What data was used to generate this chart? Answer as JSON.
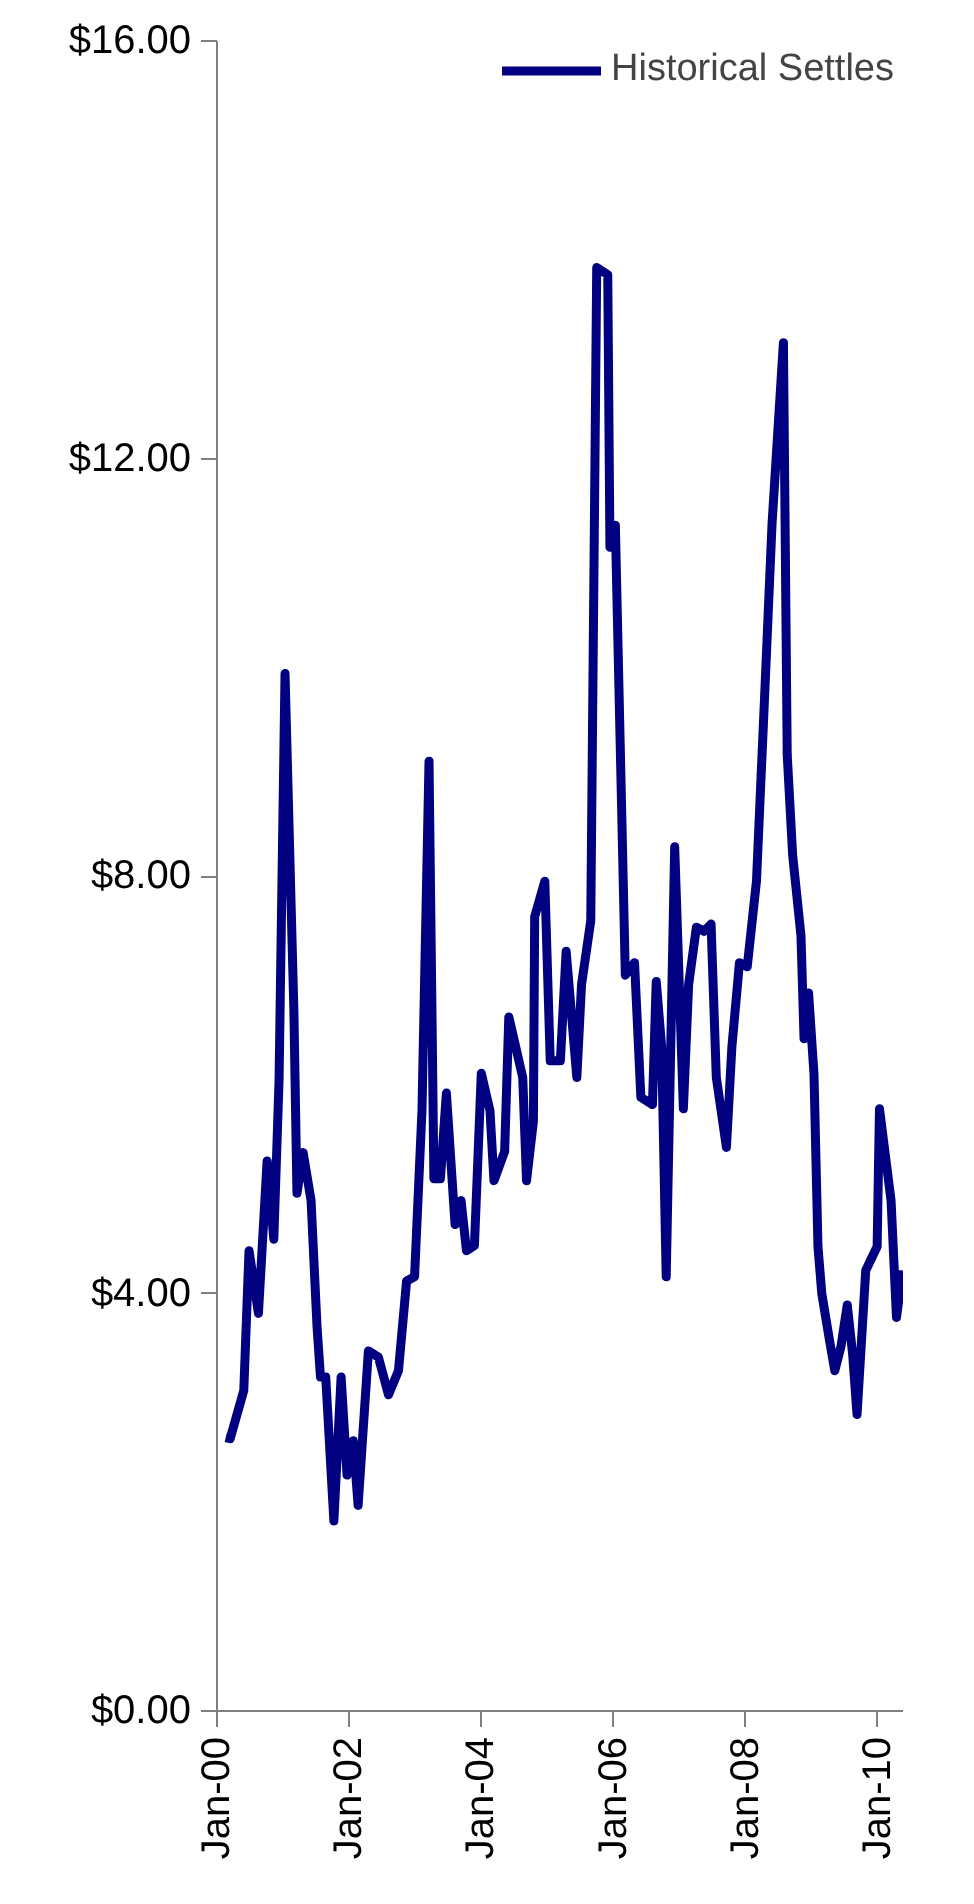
{
  "chart_data": {
    "type": "line",
    "x": [
      "2000-02-18",
      "2000-03-14",
      "2000-05-28",
      "2000-06-26",
      "2000-08-17",
      "2000-10-04",
      "2000-11-10",
      "2000-12-09",
      "2001-01-11",
      "2001-03-01",
      "2001-03-18",
      "2001-04-21",
      "2001-06-04",
      "2001-07-07",
      "2001-07-26",
      "2001-08-24",
      "2001-10-08",
      "2001-11-17",
      "2001-12-20",
      "2002-01-23",
      "2002-02-19",
      "2002-04-17",
      "2002-06-11",
      "2002-08-06",
      "2002-09-30",
      "2002-11-14",
      "2002-12-28",
      "2003-02-07",
      "2003-03-18",
      "2003-04-14",
      "2003-05-20",
      "2003-06-22",
      "2003-08-09",
      "2003-09-11",
      "2003-10-11",
      "2003-11-24",
      "2004-01-01",
      "2004-02-18",
      "2004-03-11",
      "2004-05-09",
      "2004-06-01",
      "2004-08-17",
      "2004-09-07",
      "2004-10-15",
      "2004-10-22",
      "2004-12-17",
      "2005-01-16",
      "2005-03-13",
      "2005-04-14",
      "2005-06-12",
      "2005-07-08",
      "2005-08-28",
      "2005-09-30",
      "2005-11-30",
      "2005-12-12",
      "2006-01-11",
      "2006-03-07",
      "2006-04-27",
      "2006-06-01",
      "2006-08-04",
      "2006-08-25",
      "2006-09-24",
      "2006-10-19",
      "2006-12-05",
      "2007-01-22",
      "2007-02-20",
      "2007-04-04",
      "2007-05-16",
      "2007-06-24",
      "2007-07-23",
      "2007-09-17",
      "2007-10-17",
      "2007-11-28",
      "2008-01-10",
      "2008-03-01",
      "2008-04-12",
      "2008-05-26",
      "2008-07-28",
      "2008-08-18",
      "2008-09-17",
      "2008-11-02",
      "2008-11-19",
      "2008-12-14",
      "2009-01-13",
      "2009-02-04",
      "2009-02-25",
      "2009-04-08",
      "2009-05-08",
      "2009-06-11",
      "2009-07-16",
      "2009-08-15",
      "2009-09-08",
      "2009-10-26",
      "2009-12-28",
      "2010-01-10",
      "2010-03-15",
      "2010-04-14",
      "2010-05-18"
    ],
    "series": [
      {
        "name": "Historical Settles",
        "color": "#000080",
        "values": [
          2.62,
          2.61,
          3.07,
          4.41,
          3.81,
          5.27,
          4.52,
          6.04,
          9.94,
          6.71,
          4.96,
          5.35,
          4.89,
          3.68,
          3.2,
          3.2,
          1.82,
          3.2,
          2.26,
          2.59,
          1.97,
          3.45,
          3.39,
          3.03,
          3.26,
          4.12,
          4.16,
          5.75,
          9.1,
          5.1,
          5.1,
          5.92,
          4.66,
          4.89,
          4.41,
          4.46,
          6.11,
          5.75,
          5.08,
          5.36,
          6.65,
          6.07,
          5.08,
          5.65,
          7.61,
          7.95,
          6.23,
          6.23,
          7.28,
          6.07,
          6.96,
          7.57,
          13.83,
          13.76,
          11.15,
          11.36,
          7.05,
          7.17,
          5.88,
          5.81,
          6.99,
          6.36,
          4.16,
          8.28,
          5.77,
          6.96,
          7.51,
          7.47,
          7.54,
          6.07,
          5.4,
          6.36,
          7.17,
          7.13,
          7.95,
          9.6,
          11.37,
          13.11,
          9.16,
          8.2,
          7.43,
          6.44,
          6.88,
          6.1,
          4.45,
          4.0,
          3.56,
          3.26,
          3.49,
          3.89,
          3.41,
          2.84,
          4.22,
          4.45,
          5.77,
          4.89,
          3.77,
          4.22
        ]
      }
    ],
    "xlim": [
      "2000-01-01",
      "2010-05-20"
    ],
    "xticks": [
      {
        "value": "2000-01-01",
        "label": "Jan-00"
      },
      {
        "value": "2002-01-01",
        "label": "Jan-02"
      },
      {
        "value": "2004-01-01",
        "label": "Jan-04"
      },
      {
        "value": "2006-01-01",
        "label": "Jan-06"
      },
      {
        "value": "2008-01-01",
        "label": "Jan-08"
      },
      {
        "value": "2010-01-01",
        "label": "Jan-10"
      }
    ],
    "ylim": [
      0,
      16
    ],
    "yticks": [
      {
        "value": 0,
        "label": "$0.00"
      },
      {
        "value": 4,
        "label": "$4.00"
      },
      {
        "value": 8,
        "label": "$8.00"
      },
      {
        "value": 12,
        "label": "$12.00"
      },
      {
        "value": 16,
        "label": "$16.00"
      }
    ],
    "grid": false,
    "legend": "top right",
    "marker": "none",
    "line_style": "solid"
  }
}
